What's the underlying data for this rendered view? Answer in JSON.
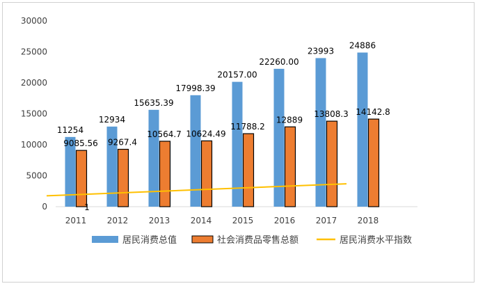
{
  "chart_data": {
    "type": "bar",
    "categories": [
      "2011",
      "2012",
      "2013",
      "2014",
      "2015",
      "2016",
      "2017",
      "2018"
    ],
    "ylim": [
      0,
      30000
    ],
    "yticks": [
      "0",
      "5000",
      "10000",
      "15000",
      "20000",
      "25000",
      "30000"
    ],
    "grid": false,
    "legend_position": "bottom",
    "series": [
      {
        "name": "居民消费总值",
        "type": "bar",
        "color": "#5b9bd5",
        "values": [
          11254,
          12934,
          15635.39,
          17998.39,
          20157.0,
          22260.0,
          23993,
          24886
        ],
        "labels": [
          "11254",
          "12934",
          "15635.39",
          "17998.39",
          "20157.00",
          "22260.00",
          "23993",
          "24886"
        ]
      },
      {
        "name": "社会消费品零售总额",
        "type": "bar",
        "color": "#ed7d31",
        "values": [
          9085.56,
          9267.4,
          10564.7,
          10624.49,
          11788.2,
          12889,
          13808.3,
          14142.8
        ],
        "labels": [
          "9085.56",
          "9267.4",
          "10564.7",
          "10624.49",
          "11788.2",
          "12889",
          "13808.3",
          "14142.8"
        ]
      },
      {
        "name": "居民消费水平指数",
        "type": "line",
        "color": "#ffc000",
        "x_start": "2011",
        "x_end": "2017",
        "y_start": 1750,
        "y_end": 3700,
        "annotation": "1"
      }
    ]
  }
}
